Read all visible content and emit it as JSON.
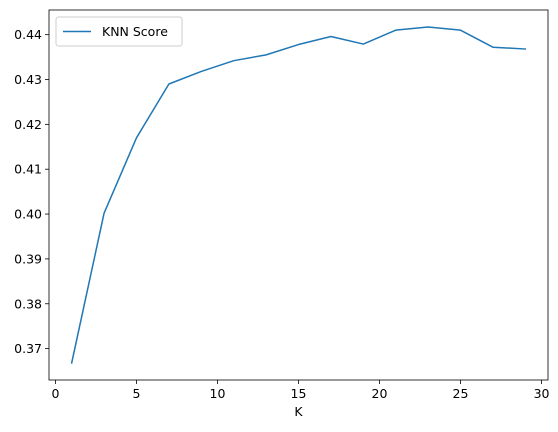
{
  "chart_data": {
    "type": "line",
    "xlabel": "K",
    "ylabel": "",
    "title": "",
    "x": [
      1,
      3,
      5,
      7,
      9,
      11,
      13,
      15,
      17,
      19,
      21,
      23,
      25,
      27,
      29
    ],
    "series": [
      {
        "name": "KNN Score",
        "color": "#1f77b4",
        "values": [
          0.3668,
          0.4002,
          0.417,
          0.429,
          0.4318,
          0.4342,
          0.4355,
          0.4378,
          0.4396,
          0.4379,
          0.441,
          0.4417,
          0.441,
          0.4372,
          0.4368
        ]
      }
    ],
    "xlim": [
      -0.4,
      30.4
    ],
    "ylim": [
      0.363,
      0.4455
    ],
    "xticks": [
      0,
      5,
      10,
      15,
      20,
      25,
      30
    ],
    "yticks": [
      0.37,
      0.38,
      0.39,
      0.4,
      0.41,
      0.42,
      0.43,
      0.44
    ],
    "xtick_labels": [
      "0",
      "5",
      "10",
      "15",
      "20",
      "25",
      "30"
    ],
    "ytick_labels": [
      "0.37",
      "0.38",
      "0.39",
      "0.40",
      "0.41",
      "0.42",
      "0.43",
      "0.44"
    ],
    "grid": false,
    "legend_position": "upper-left"
  }
}
